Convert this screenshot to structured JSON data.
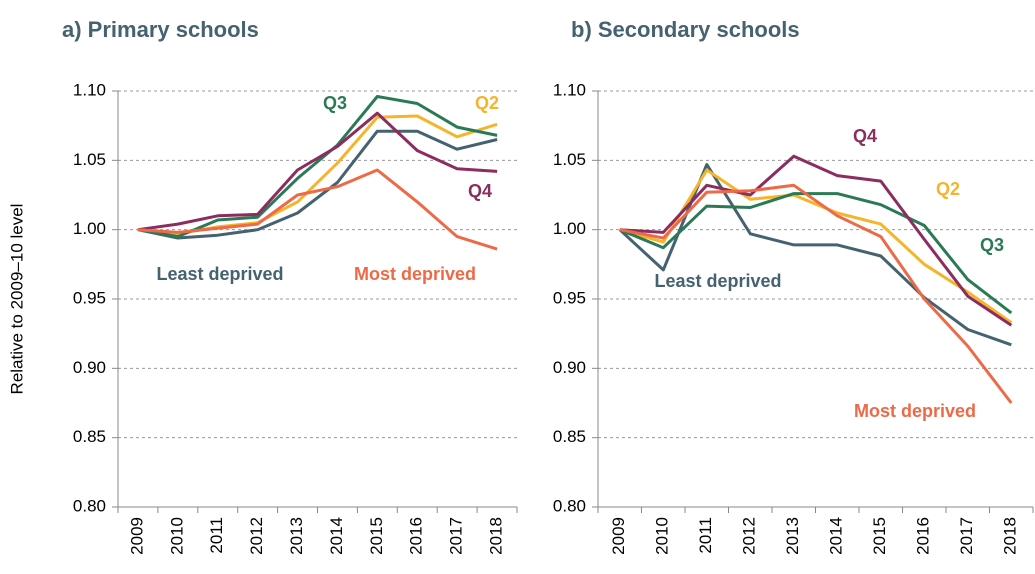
{
  "chart_data": [
    {
      "type": "line",
      "title": "a) Primary schools",
      "ylabel": "Relative to 2009–10 level",
      "categories": [
        "2009",
        "2010",
        "2011",
        "2012",
        "2013",
        "2014",
        "2015",
        "2016",
        "2017",
        "2018"
      ],
      "ylim": [
        0.8,
        1.1
      ],
      "yticks": [
        {
          "value": 0.8,
          "label": "0.80"
        },
        0.85,
        {
          "value": 0.9,
          "label": "0.90"
        },
        0.95,
        {
          "value": 1.0,
          "label": "1.00"
        },
        1.05,
        {
          "value": 1.1,
          "label": "1.10"
        }
      ],
      "grid": true,
      "series": [
        {
          "name": "Least deprived",
          "color": "#44626f",
          "values": [
            1.0,
            0.994,
            0.996,
            1.0,
            1.012,
            1.034,
            1.071,
            1.071,
            1.058,
            1.065
          ]
        },
        {
          "name": "Q2",
          "color": "#f5b42a",
          "values": [
            1.0,
            0.997,
            1.002,
            1.005,
            1.02,
            1.048,
            1.081,
            1.082,
            1.067,
            1.076
          ]
        },
        {
          "name": "Q3",
          "color": "#2a7a55",
          "values": [
            1.0,
            0.995,
            1.007,
            1.009,
            1.037,
            1.061,
            1.096,
            1.091,
            1.074,
            1.068
          ]
        },
        {
          "name": "Q4",
          "color": "#8c2d5f",
          "values": [
            1.0,
            1.004,
            1.01,
            1.011,
            1.043,
            1.06,
            1.084,
            1.057,
            1.044,
            1.042
          ]
        },
        {
          "name": "Most deprived",
          "color": "#ee6a47",
          "values": [
            1.0,
            0.998,
            1.001,
            1.004,
            1.025,
            1.031,
            1.043,
            1.02,
            0.995,
            0.986
          ]
        }
      ]
    },
    {
      "type": "line",
      "title": "b) Secondary schools",
      "categories": [
        "2009",
        "2010",
        "2011",
        "2012",
        "2013",
        "2014",
        "2015",
        "2016",
        "2017",
        "2018"
      ],
      "ylim": [
        0.8,
        1.1
      ],
      "yticks": [
        {
          "value": 0.8,
          "label": "0.80"
        },
        0.85,
        {
          "value": 0.9,
          "label": "0.90"
        },
        0.95,
        {
          "value": 1.0,
          "label": "1.00"
        },
        1.05,
        {
          "value": 1.1,
          "label": "1.10"
        }
      ],
      "grid": true,
      "series": [
        {
          "name": "Least deprived",
          "color": "#44626f",
          "values": [
            1.0,
            0.971,
            1.047,
            0.997,
            0.989,
            0.989,
            0.981,
            0.951,
            0.928,
            0.917
          ]
        },
        {
          "name": "Q2",
          "color": "#f5b42a",
          "values": [
            1.0,
            0.991,
            1.043,
            1.022,
            1.025,
            1.012,
            1.004,
            0.975,
            0.955,
            0.933
          ]
        },
        {
          "name": "Q3",
          "color": "#2a7a55",
          "values": [
            1.0,
            0.987,
            1.017,
            1.016,
            1.026,
            1.026,
            1.018,
            1.003,
            0.964,
            0.94
          ]
        },
        {
          "name": "Q4",
          "color": "#8c2d5f",
          "values": [
            1.0,
            0.998,
            1.032,
            1.025,
            1.053,
            1.039,
            1.035,
            0.993,
            0.952,
            0.931
          ]
        },
        {
          "name": "Most deprived",
          "color": "#ee6a47",
          "values": [
            1.0,
            0.994,
            1.027,
            1.028,
            1.032,
            1.01,
            0.995,
            0.95,
            0.916,
            0.875
          ]
        }
      ]
    }
  ]
}
